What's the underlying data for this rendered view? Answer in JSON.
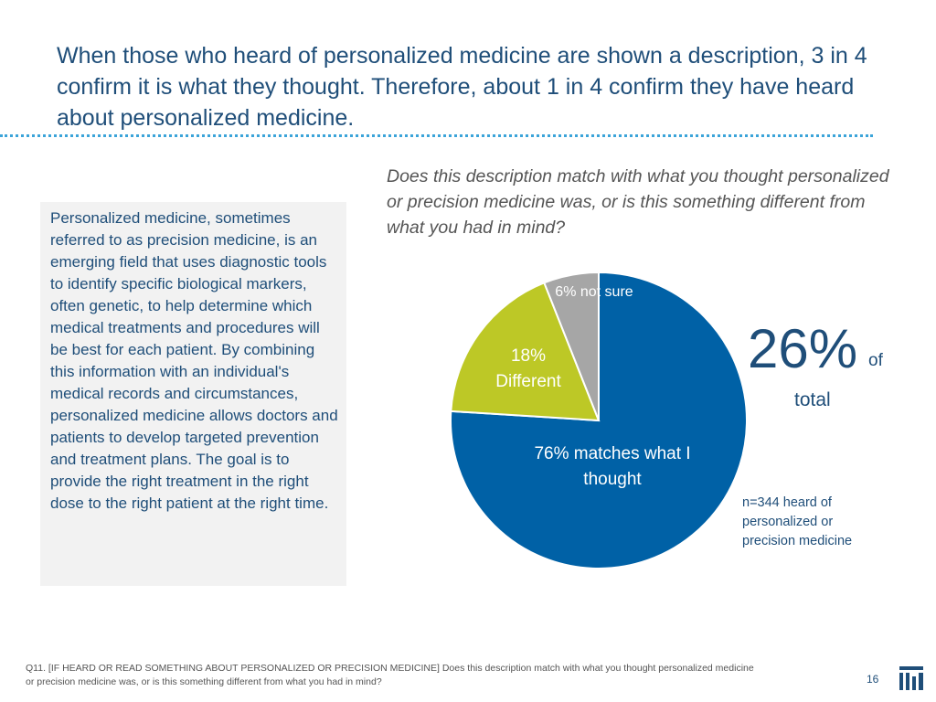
{
  "title": "When those who heard of personalized medicine are shown a description, 3 in 4 confirm it is what they thought. Therefore, about 1 in 4 confirm they have heard about personalized medicine.",
  "description": "Personalized medicine, sometimes referred to as precision medicine, is an emerging field that uses diagnostic tools to identify specific biological markers, often genetic, to help determine which medical treatments and procedures will be best for each patient. By combining this information with an individual's medical records and circumstances, personalized medicine allows doctors and patients to develop targeted prevention and treatment plans. The goal is to provide the right treatment in the right dose to the right patient at the right time.",
  "stat": {
    "value": "26%",
    "of": "of",
    "total": "total",
    "base": "n=344 heard of personalized or precision medicine"
  },
  "chart_data": {
    "type": "pie",
    "title": "Does this description match with what you thought personalized or precision medicine was, or is this something different from what you had in mind?",
    "categories": [
      "matches what I thought",
      "Different",
      "not sure"
    ],
    "values": [
      76,
      18,
      6
    ],
    "labels": [
      "76% matches what I thought",
      "18% Different",
      "6% not sure"
    ],
    "colors": [
      "#0061a6",
      "#bdc826",
      "#a6a6a6"
    ],
    "start": "12 o'clock",
    "direction": "clockwise"
  },
  "footnote": "Q11. [IF HEARD OR READ SOMETHING ABOUT PERSONALIZED OR PRECISION MEDICINE] Does this description match with what you thought personalized medicine or precision medicine was, or is this something different from what you had in mind?",
  "page_number": "16",
  "logo_icon": "company-logo-icon"
}
